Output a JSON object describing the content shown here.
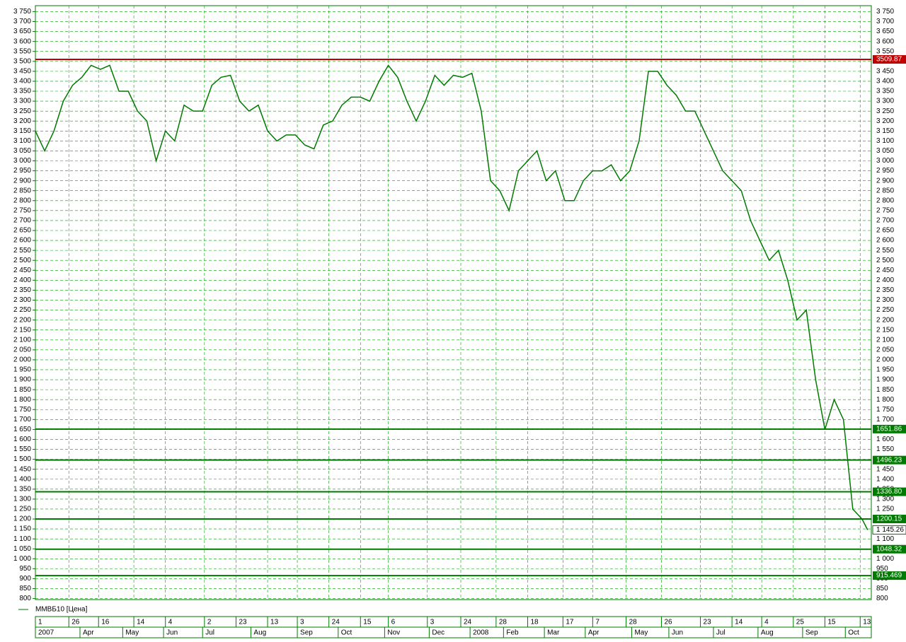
{
  "chart_data": {
    "type": "line",
    "series": [
      {
        "name": "ММВБ10 [Цена]",
        "color": "#007a00",
        "x": [
          0,
          5,
          10,
          15,
          20,
          25,
          30,
          35,
          40,
          45,
          50,
          55,
          60,
          65,
          70,
          75,
          80,
          85,
          90,
          95,
          100,
          105,
          110,
          115,
          120,
          125,
          130,
          135,
          140,
          145,
          150,
          155,
          160,
          165,
          170,
          175,
          180,
          185,
          190,
          195,
          200,
          205,
          210,
          215,
          220,
          225,
          230,
          235,
          240,
          245,
          250,
          255,
          260,
          265,
          270,
          275,
          280,
          285,
          290,
          295,
          300,
          305,
          310,
          315,
          320,
          325,
          330,
          335,
          340,
          345,
          350,
          355,
          360,
          365,
          370,
          375,
          380,
          385,
          390,
          395,
          400,
          405,
          410,
          415,
          420,
          425,
          430,
          435,
          440,
          445,
          448
        ],
        "values": [
          3150,
          3050,
          3150,
          3300,
          3380,
          3420,
          3480,
          3460,
          3480,
          3350,
          3350,
          3250,
          3200,
          3000,
          3150,
          3100,
          3280,
          3250,
          3250,
          3380,
          3420,
          3430,
          3300,
          3250,
          3280,
          3150,
          3100,
          3130,
          3130,
          3080,
          3060,
          3180,
          3200,
          3280,
          3320,
          3320,
          3300,
          3400,
          3480,
          3420,
          3300,
          3200,
          3300,
          3430,
          3380,
          3430,
          3420,
          3440,
          3250,
          2900,
          2850,
          2750,
          2950,
          3000,
          3050,
          2900,
          2950,
          2800,
          2800,
          2900,
          2950,
          2950,
          2980,
          2900,
          2950,
          3100,
          3450,
          3450,
          3380,
          3330,
          3250,
          3250,
          3150,
          3050,
          2950,
          2900,
          2850,
          2700,
          2600,
          2500,
          2550,
          2400,
          2200,
          2250,
          1900,
          1650,
          1800,
          1700,
          1250,
          1200,
          1145
        ]
      }
    ],
    "xlim": [
      0,
      450
    ],
    "ylim": [
      795,
      3780
    ],
    "xticks": [
      {
        "value": 0,
        "label": "1"
      },
      {
        "value": 18,
        "label": "26"
      },
      {
        "value": 34,
        "label": "16"
      },
      {
        "value": 53,
        "label": "14"
      },
      {
        "value": 70,
        "label": "4"
      },
      {
        "value": 91,
        "label": "2"
      },
      {
        "value": 108,
        "label": "23"
      },
      {
        "value": 125,
        "label": "13"
      },
      {
        "value": 141,
        "label": "3"
      },
      {
        "value": 158,
        "label": "24"
      },
      {
        "value": 175,
        "label": "15"
      },
      {
        "value": 190,
        "label": "6"
      },
      {
        "value": 211,
        "label": "3"
      },
      {
        "value": 229,
        "label": "24"
      },
      {
        "value": 248,
        "label": "28"
      },
      {
        "value": 265,
        "label": "18"
      },
      {
        "value": 284,
        "label": "17"
      },
      {
        "value": 300,
        "label": "7"
      },
      {
        "value": 318,
        "label": "28"
      },
      {
        "value": 337,
        "label": "26"
      },
      {
        "value": 358,
        "label": "23"
      },
      {
        "value": 375,
        "label": "14"
      },
      {
        "value": 391,
        "label": "4"
      },
      {
        "value": 408,
        "label": "25"
      },
      {
        "value": 425,
        "label": "15"
      },
      {
        "value": 444,
        "label": "13"
      }
    ],
    "month_ticks": [
      {
        "value": 0,
        "label": "2007"
      },
      {
        "value": 24,
        "label": "Apr"
      },
      {
        "value": 47,
        "label": "May"
      },
      {
        "value": 69,
        "label": "Jun"
      },
      {
        "value": 90,
        "label": "Jul"
      },
      {
        "value": 116,
        "label": "Aug"
      },
      {
        "value": 141,
        "label": "Sep"
      },
      {
        "value": 163,
        "label": "Oct"
      },
      {
        "value": 188,
        "label": "Nov"
      },
      {
        "value": 212,
        "label": "Dec"
      },
      {
        "value": 234,
        "label": "2008"
      },
      {
        "value": 252,
        "label": "Feb"
      },
      {
        "value": 274,
        "label": "Mar"
      },
      {
        "value": 296,
        "label": "Apr"
      },
      {
        "value": 321,
        "label": "May"
      },
      {
        "value": 341,
        "label": "Jun"
      },
      {
        "value": 365,
        "label": "Jul"
      },
      {
        "value": 389,
        "label": "Aug"
      },
      {
        "value": 413,
        "label": "Sep"
      },
      {
        "value": 436,
        "label": "Oct"
      }
    ],
    "yticks": [
      800,
      850,
      900,
      950,
      {
        "value": 1000,
        "label": "1 000"
      },
      {
        "value": 1050,
        "label": "1 050"
      },
      {
        "value": 1100,
        "label": "1 100"
      },
      {
        "value": 1150,
        "label": "1 150"
      },
      {
        "value": 1200,
        "label": "1 200"
      },
      {
        "value": 1250,
        "label": "1 250"
      },
      {
        "value": 1300,
        "label": "1 300"
      },
      {
        "value": 1350,
        "label": "1 350"
      },
      {
        "value": 1400,
        "label": "1 400"
      },
      {
        "value": 1450,
        "label": "1 450"
      },
      {
        "value": 1500,
        "label": "1 500"
      },
      {
        "value": 1550,
        "label": "1 550"
      },
      {
        "value": 1600,
        "label": "1 600"
      },
      {
        "value": 1650,
        "label": "1 650"
      },
      {
        "value": 1700,
        "label": "1 700"
      },
      {
        "value": 1750,
        "label": "1 750"
      },
      {
        "value": 1800,
        "label": "1 800"
      },
      {
        "value": 1850,
        "label": "1 850"
      },
      {
        "value": 1900,
        "label": "1 900"
      },
      {
        "value": 1950,
        "label": "1 950"
      },
      {
        "value": 2000,
        "label": "2 000"
      },
      {
        "value": 2050,
        "label": "2 050"
      },
      {
        "value": 2100,
        "label": "2 100"
      },
      {
        "value": 2150,
        "label": "2 150"
      },
      {
        "value": 2200,
        "label": "2 200"
      },
      {
        "value": 2250,
        "label": "2 250"
      },
      {
        "value": 2300,
        "label": "2 300"
      },
      {
        "value": 2350,
        "label": "2 350"
      },
      {
        "value": 2400,
        "label": "2 400"
      },
      {
        "value": 2450,
        "label": "2 450"
      },
      {
        "value": 2500,
        "label": "2 500"
      },
      {
        "value": 2550,
        "label": "2 550"
      },
      {
        "value": 2600,
        "label": "2 600"
      },
      {
        "value": 2650,
        "label": "2 650"
      },
      {
        "value": 2700,
        "label": "2 700"
      },
      {
        "value": 2750,
        "label": "2 750"
      },
      {
        "value": 2800,
        "label": "2 800"
      },
      {
        "value": 2850,
        "label": "2 850"
      },
      {
        "value": 2900,
        "label": "2 900"
      },
      {
        "value": 2950,
        "label": "2 950"
      },
      {
        "value": 3000,
        "label": "3 000"
      },
      {
        "value": 3050,
        "label": "3 050"
      },
      {
        "value": 3100,
        "label": "3 100"
      },
      {
        "value": 3150,
        "label": "3 150"
      },
      {
        "value": 3200,
        "label": "3 200"
      },
      {
        "value": 3250,
        "label": "3 250"
      },
      {
        "value": 3300,
        "label": "3 300"
      },
      {
        "value": 3350,
        "label": "3 350"
      },
      {
        "value": 3400,
        "label": "3 400"
      },
      {
        "value": 3450,
        "label": "3 450"
      },
      {
        "value": 3500,
        "label": "3 500"
      },
      {
        "value": 3550,
        "label": "3 550"
      },
      {
        "value": 3600,
        "label": "3 600"
      },
      {
        "value": 3650,
        "label": "3 650"
      },
      {
        "value": 3700,
        "label": "3 700"
      },
      {
        "value": 3750,
        "label": "3 750"
      }
    ],
    "grid": true,
    "levels": [
      {
        "value": 3509.87,
        "color": "#c00000"
      },
      {
        "value": 1651.86,
        "color": "#007a00"
      },
      {
        "value": 1496.23,
        "color": "#007a00"
      },
      {
        "value": 1336.8,
        "label": "1336.80",
        "color": "#007a00"
      },
      {
        "value": 1200.15,
        "color": "#007a00"
      },
      {
        "value": 1048.32,
        "color": "#007a00"
      },
      {
        "value": 915.469,
        "color": "#007a00"
      }
    ],
    "last_price": {
      "value": 1145.26,
      "label": "1 145.26"
    }
  }
}
